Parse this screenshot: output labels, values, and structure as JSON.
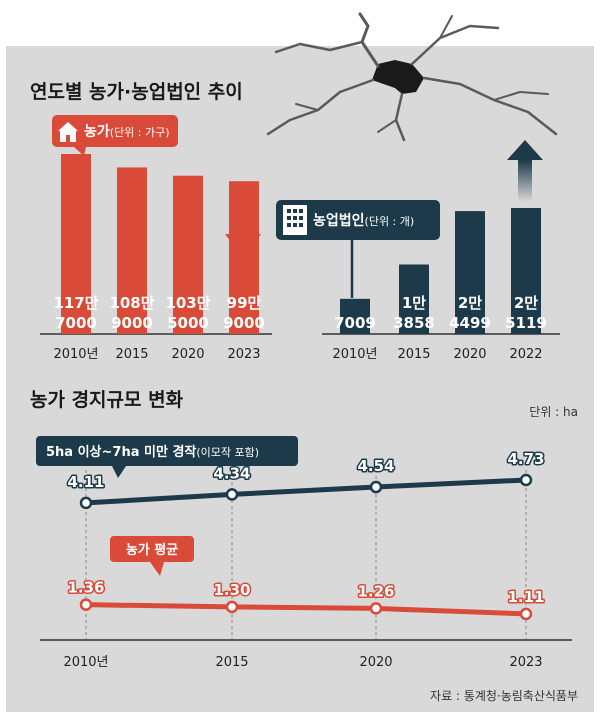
{
  "title_top": "연도별 농가·농업법인 추이",
  "title_bottom": "농가 경지규모 변화",
  "unit_bottom": "단위 : ha",
  "source": "자료 : 통계청·농림축산식품부",
  "colors": {
    "background": "#d9d9da",
    "farm_red": "#d94a38",
    "corp_navy": "#1c3a4a",
    "grid_dash": "#888888"
  },
  "chart_data": [
    {
      "type": "bar",
      "series_name": "농가",
      "unit": "(단위 : 가구)",
      "categories": [
        "2010년",
        "2015",
        "2020",
        "2023"
      ],
      "values": [
        1177000,
        1089000,
        1035000,
        999000
      ],
      "value_labels": [
        "117만\n7000",
        "108만\n9000",
        "103만\n5000",
        "99만\n9000"
      ],
      "trend": "down"
    },
    {
      "type": "bar",
      "series_name": "농업법인",
      "unit": "(단위 : 개)",
      "categories": [
        "2010년",
        "2015",
        "2020",
        "2022"
      ],
      "values": [
        7009,
        13858,
        24499,
        25119
      ],
      "value_labels": [
        "7009",
        "1만\n3858",
        "2만\n4499",
        "2만\n5119"
      ],
      "trend": "up"
    },
    {
      "type": "line",
      "categories": [
        "2010년",
        "2015",
        "2020",
        "2023"
      ],
      "series": [
        {
          "name": "5ha 이상~7ha 미만 경작",
          "name_note": "(이모작 포함)",
          "values": [
            4.11,
            4.34,
            4.54,
            4.73
          ],
          "value_labels": [
            "4.11",
            "4.34",
            "4.54",
            "4.73"
          ]
        },
        {
          "name": "농가 평균",
          "values": [
            1.36,
            1.3,
            1.26,
            1.11
          ],
          "value_labels": [
            "1.36",
            "1.30",
            "1.26",
            "1.11"
          ]
        }
      ]
    }
  ]
}
